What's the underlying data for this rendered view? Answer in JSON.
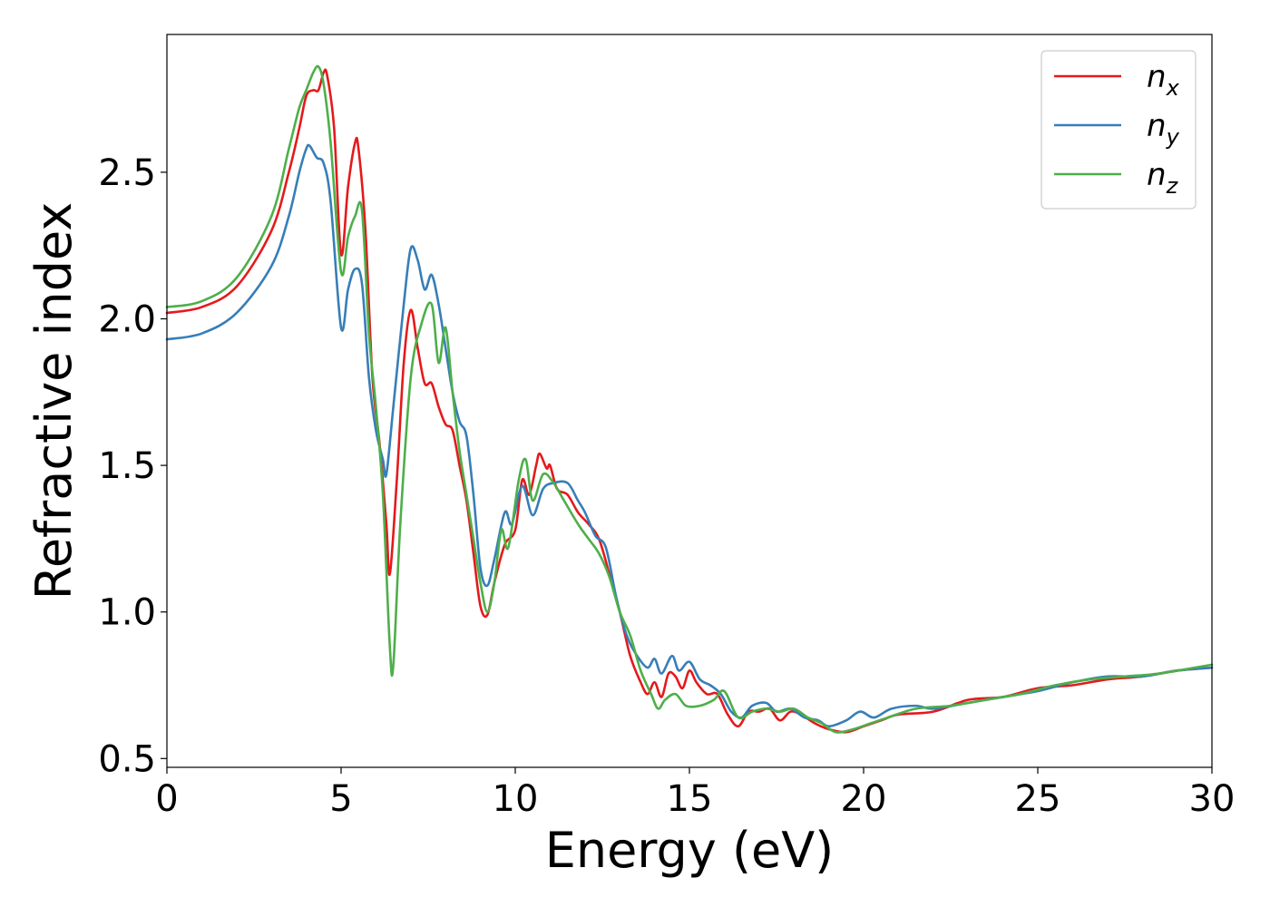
{
  "chart_data": {
    "type": "line",
    "title": "",
    "xlabel": "Energy (eV)",
    "ylabel": "Refractive index",
    "xlim": [
      0,
      30
    ],
    "ylim": [
      0.47,
      2.97
    ],
    "xticks": [
      0,
      5,
      10,
      15,
      20,
      25,
      30
    ],
    "xtick_labels": [
      "0",
      "5",
      "10",
      "15",
      "20",
      "25",
      "30"
    ],
    "yticks": [
      0.5,
      1.0,
      1.5,
      2.0,
      2.5
    ],
    "ytick_labels": [
      "0.5",
      "1.0",
      "1.5",
      "2.0",
      "2.5"
    ],
    "grid": false,
    "legend_position": "top-right",
    "series": [
      {
        "name": "n",
        "subscript": "x",
        "color": "#e41a1c",
        "points": [
          [
            0,
            2.02
          ],
          [
            1,
            2.04
          ],
          [
            2,
            2.11
          ],
          [
            3,
            2.3
          ],
          [
            3.5,
            2.5
          ],
          [
            3.8,
            2.65
          ],
          [
            4.0,
            2.76
          ],
          [
            4.2,
            2.78
          ],
          [
            4.35,
            2.78
          ],
          [
            4.5,
            2.84
          ],
          [
            4.6,
            2.83
          ],
          [
            4.8,
            2.65
          ],
          [
            5.0,
            2.22
          ],
          [
            5.2,
            2.45
          ],
          [
            5.4,
            2.6
          ],
          [
            5.5,
            2.58
          ],
          [
            5.7,
            2.3
          ],
          [
            5.9,
            1.8
          ],
          [
            6.1,
            1.58
          ],
          [
            6.3,
            1.3
          ],
          [
            6.4,
            1.13
          ],
          [
            6.6,
            1.45
          ],
          [
            6.8,
            1.85
          ],
          [
            7.0,
            2.03
          ],
          [
            7.2,
            1.9
          ],
          [
            7.4,
            1.78
          ],
          [
            7.6,
            1.78
          ],
          [
            7.8,
            1.7
          ],
          [
            8.0,
            1.64
          ],
          [
            8.2,
            1.62
          ],
          [
            8.4,
            1.5
          ],
          [
            8.6,
            1.38
          ],
          [
            8.8,
            1.2
          ],
          [
            9.0,
            1.02
          ],
          [
            9.2,
            0.99
          ],
          [
            9.4,
            1.1
          ],
          [
            9.7,
            1.23
          ],
          [
            10.0,
            1.28
          ],
          [
            10.2,
            1.45
          ],
          [
            10.4,
            1.4
          ],
          [
            10.6,
            1.5
          ],
          [
            10.7,
            1.54
          ],
          [
            10.9,
            1.49
          ],
          [
            11.0,
            1.5
          ],
          [
            11.2,
            1.42
          ],
          [
            11.5,
            1.4
          ],
          [
            11.8,
            1.34
          ],
          [
            12.1,
            1.3
          ],
          [
            12.4,
            1.25
          ],
          [
            12.7,
            1.13
          ],
          [
            13.0,
            1.0
          ],
          [
            13.3,
            0.85
          ],
          [
            13.6,
            0.76
          ],
          [
            13.8,
            0.72
          ],
          [
            14.0,
            0.76
          ],
          [
            14.2,
            0.71
          ],
          [
            14.4,
            0.79
          ],
          [
            14.6,
            0.78
          ],
          [
            14.8,
            0.74
          ],
          [
            15.0,
            0.8
          ],
          [
            15.2,
            0.76
          ],
          [
            15.5,
            0.72
          ],
          [
            15.8,
            0.72
          ],
          [
            16.1,
            0.65
          ],
          [
            16.4,
            0.61
          ],
          [
            16.7,
            0.66
          ],
          [
            17.0,
            0.66
          ],
          [
            17.3,
            0.67
          ],
          [
            17.6,
            0.63
          ],
          [
            17.9,
            0.66
          ],
          [
            18.2,
            0.65
          ],
          [
            18.6,
            0.62
          ],
          [
            19.0,
            0.6
          ],
          [
            19.5,
            0.59
          ],
          [
            20.0,
            0.61
          ],
          [
            20.5,
            0.63
          ],
          [
            21.0,
            0.65
          ],
          [
            22.0,
            0.66
          ],
          [
            23.0,
            0.7
          ],
          [
            24.0,
            0.71
          ],
          [
            25.0,
            0.74
          ],
          [
            26.0,
            0.75
          ],
          [
            27.0,
            0.77
          ],
          [
            28.0,
            0.78
          ],
          [
            29.0,
            0.8
          ],
          [
            30.0,
            0.81
          ]
        ]
      },
      {
        "name": "n",
        "subscript": "y",
        "color": "#377eb8",
        "points": [
          [
            0,
            1.93
          ],
          [
            1,
            1.95
          ],
          [
            2,
            2.02
          ],
          [
            3,
            2.18
          ],
          [
            3.5,
            2.35
          ],
          [
            3.8,
            2.5
          ],
          [
            4.0,
            2.58
          ],
          [
            4.1,
            2.59
          ],
          [
            4.3,
            2.55
          ],
          [
            4.5,
            2.53
          ],
          [
            4.7,
            2.4
          ],
          [
            5.0,
            1.97
          ],
          [
            5.2,
            2.1
          ],
          [
            5.4,
            2.17
          ],
          [
            5.6,
            2.12
          ],
          [
            5.8,
            1.8
          ],
          [
            6.0,
            1.62
          ],
          [
            6.2,
            1.52
          ],
          [
            6.3,
            1.47
          ],
          [
            6.5,
            1.7
          ],
          [
            6.8,
            2.05
          ],
          [
            7.0,
            2.24
          ],
          [
            7.2,
            2.2
          ],
          [
            7.4,
            2.1
          ],
          [
            7.6,
            2.15
          ],
          [
            7.8,
            2.05
          ],
          [
            8.0,
            1.9
          ],
          [
            8.2,
            1.75
          ],
          [
            8.4,
            1.65
          ],
          [
            8.6,
            1.6
          ],
          [
            8.8,
            1.4
          ],
          [
            9.0,
            1.15
          ],
          [
            9.2,
            1.09
          ],
          [
            9.4,
            1.18
          ],
          [
            9.7,
            1.34
          ],
          [
            9.9,
            1.3
          ],
          [
            10.2,
            1.43
          ],
          [
            10.5,
            1.33
          ],
          [
            10.8,
            1.42
          ],
          [
            11.1,
            1.44
          ],
          [
            11.5,
            1.44
          ],
          [
            11.8,
            1.38
          ],
          [
            12.0,
            1.34
          ],
          [
            12.3,
            1.26
          ],
          [
            12.6,
            1.22
          ],
          [
            12.9,
            1.05
          ],
          [
            13.2,
            0.92
          ],
          [
            13.5,
            0.85
          ],
          [
            13.8,
            0.81
          ],
          [
            14.0,
            0.84
          ],
          [
            14.2,
            0.79
          ],
          [
            14.5,
            0.85
          ],
          [
            14.7,
            0.8
          ],
          [
            15.0,
            0.83
          ],
          [
            15.3,
            0.77
          ],
          [
            15.6,
            0.75
          ],
          [
            15.9,
            0.72
          ],
          [
            16.2,
            0.66
          ],
          [
            16.5,
            0.64
          ],
          [
            16.8,
            0.68
          ],
          [
            17.2,
            0.69
          ],
          [
            17.5,
            0.66
          ],
          [
            17.9,
            0.67
          ],
          [
            18.3,
            0.64
          ],
          [
            18.7,
            0.63
          ],
          [
            19.0,
            0.61
          ],
          [
            19.5,
            0.63
          ],
          [
            19.9,
            0.66
          ],
          [
            20.3,
            0.64
          ],
          [
            20.8,
            0.67
          ],
          [
            21.5,
            0.68
          ],
          [
            22.0,
            0.67
          ],
          [
            23.0,
            0.69
          ],
          [
            24.0,
            0.71
          ],
          [
            25.0,
            0.73
          ],
          [
            26.0,
            0.76
          ],
          [
            27.0,
            0.78
          ],
          [
            28.0,
            0.78
          ],
          [
            29.0,
            0.8
          ],
          [
            30.0,
            0.81
          ]
        ]
      },
      {
        "name": "n",
        "subscript": "z",
        "color": "#4daf4a",
        "points": [
          [
            0,
            2.04
          ],
          [
            1,
            2.06
          ],
          [
            2,
            2.14
          ],
          [
            3,
            2.35
          ],
          [
            3.5,
            2.58
          ],
          [
            3.8,
            2.72
          ],
          [
            4.0,
            2.78
          ],
          [
            4.2,
            2.84
          ],
          [
            4.35,
            2.86
          ],
          [
            4.5,
            2.8
          ],
          [
            4.7,
            2.6
          ],
          [
            5.0,
            2.16
          ],
          [
            5.2,
            2.28
          ],
          [
            5.4,
            2.35
          ],
          [
            5.6,
            2.37
          ],
          [
            5.8,
            1.95
          ],
          [
            6.0,
            1.7
          ],
          [
            6.2,
            1.4
          ],
          [
            6.4,
            0.88
          ],
          [
            6.5,
            0.82
          ],
          [
            6.7,
            1.3
          ],
          [
            7.0,
            1.8
          ],
          [
            7.3,
            1.98
          ],
          [
            7.6,
            2.05
          ],
          [
            7.8,
            1.85
          ],
          [
            8.0,
            1.97
          ],
          [
            8.2,
            1.75
          ],
          [
            8.4,
            1.55
          ],
          [
            8.6,
            1.4
          ],
          [
            8.8,
            1.25
          ],
          [
            9.0,
            1.1
          ],
          [
            9.2,
            1.0
          ],
          [
            9.4,
            1.1
          ],
          [
            9.6,
            1.28
          ],
          [
            9.8,
            1.22
          ],
          [
            10.1,
            1.45
          ],
          [
            10.3,
            1.52
          ],
          [
            10.5,
            1.38
          ],
          [
            10.8,
            1.47
          ],
          [
            11.1,
            1.44
          ],
          [
            11.4,
            1.38
          ],
          [
            11.8,
            1.3
          ],
          [
            12.1,
            1.25
          ],
          [
            12.4,
            1.2
          ],
          [
            12.7,
            1.12
          ],
          [
            13.0,
            1.0
          ],
          [
            13.3,
            0.92
          ],
          [
            13.6,
            0.8
          ],
          [
            13.9,
            0.72
          ],
          [
            14.1,
            0.67
          ],
          [
            14.3,
            0.7
          ],
          [
            14.6,
            0.72
          ],
          [
            14.9,
            0.68
          ],
          [
            15.3,
            0.68
          ],
          [
            15.7,
            0.7
          ],
          [
            16.0,
            0.73
          ],
          [
            16.4,
            0.64
          ],
          [
            16.8,
            0.66
          ],
          [
            17.2,
            0.67
          ],
          [
            17.6,
            0.66
          ],
          [
            18.0,
            0.67
          ],
          [
            18.4,
            0.64
          ],
          [
            18.8,
            0.62
          ],
          [
            19.2,
            0.59
          ],
          [
            19.7,
            0.6
          ],
          [
            20.2,
            0.62
          ],
          [
            20.7,
            0.64
          ],
          [
            21.5,
            0.67
          ],
          [
            22.5,
            0.68
          ],
          [
            23.5,
            0.7
          ],
          [
            24.5,
            0.72
          ],
          [
            25.5,
            0.75
          ],
          [
            26.5,
            0.77
          ],
          [
            27.5,
            0.78
          ],
          [
            28.5,
            0.79
          ],
          [
            29.5,
            0.81
          ],
          [
            30.0,
            0.82
          ]
        ]
      }
    ]
  }
}
